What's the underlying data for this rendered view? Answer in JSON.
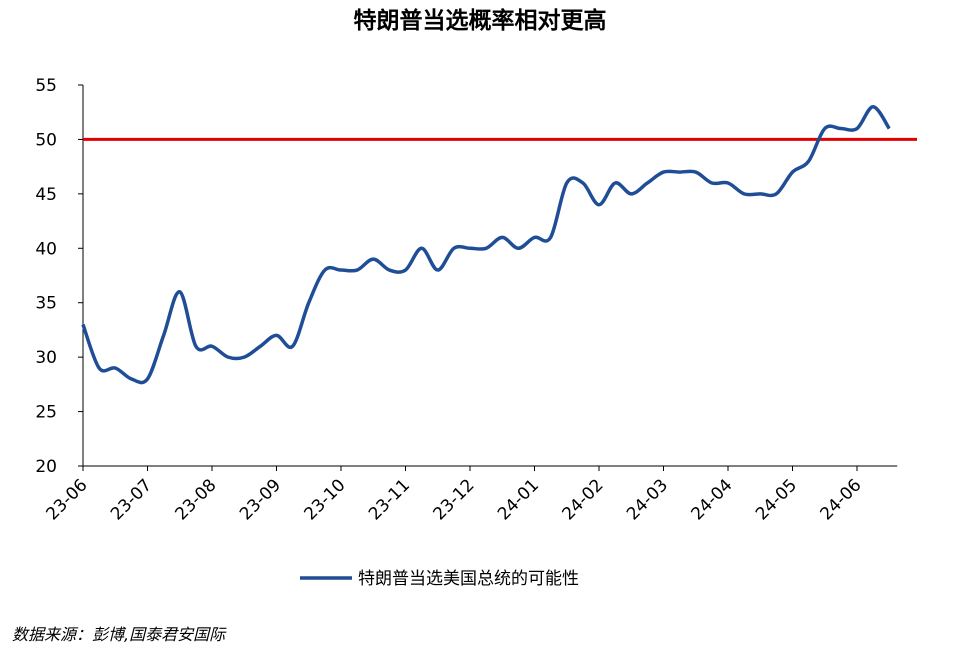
{
  "chart_data": {
    "type": "line",
    "title": "特朗普当选概率相对更高",
    "categories": [
      "23-06",
      null,
      null,
      null,
      "23-07",
      null,
      null,
      null,
      "23-08",
      null,
      null,
      null,
      "23-09",
      null,
      null,
      null,
      "23-10",
      null,
      null,
      null,
      "23-11",
      null,
      null,
      null,
      "23-12",
      null,
      null,
      null,
      "24-01",
      null,
      null,
      null,
      "24-02",
      null,
      null,
      null,
      "24-03",
      null,
      null,
      null,
      "24-04",
      null,
      null,
      null,
      "24-05",
      null,
      null,
      null,
      "24-06",
      null,
      null
    ],
    "series": [
      {
        "name": "特朗普当选美国总统的可能性",
        "color": "#1f4e96",
        "values": [
          33,
          29,
          29,
          28,
          28,
          32,
          36,
          31,
          31,
          30,
          30,
          31,
          32,
          31,
          35,
          38,
          38,
          38,
          39,
          38,
          38,
          40,
          38,
          40,
          40,
          40,
          41,
          40,
          41,
          41,
          46,
          46,
          44,
          46,
          45,
          46,
          47,
          47,
          47,
          46,
          46,
          45,
          45,
          45,
          47,
          48,
          51,
          51,
          51,
          53,
          51
        ]
      }
    ],
    "reference_line": {
      "value": 50,
      "color": "#e00000"
    },
    "ylim": [
      20,
      55
    ],
    "yticks": [
      20,
      25,
      30,
      35,
      40,
      45,
      50,
      55
    ],
    "legend": "bottom",
    "source": "数据来源：彭博,国泰君安国际"
  }
}
